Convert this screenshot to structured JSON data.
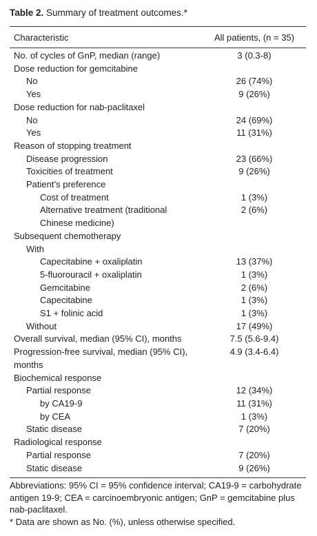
{
  "title": {
    "label": "Table 2.",
    "text": "Summary of treatment outcomes.*"
  },
  "table": {
    "header": [
      "Characteristic",
      "All patients, (n = 35)"
    ],
    "rows": [
      [
        "No. of cycles of GnP, median (range)",
        "3 (0.3-8)"
      ],
      [
        "Dose reduction for gemcitabine"
      ],
      [
        "No",
        "26 (74%)"
      ],
      [
        "Yes",
        "9 (26%)"
      ],
      [
        "Dose reduction for nab-paclitaxel"
      ],
      [
        "No",
        "24 (69%)"
      ],
      [
        "Yes",
        "11 (31%)"
      ],
      [
        "Reason of stopping treatment"
      ],
      [
        "Disease progression",
        "23 (66%)"
      ],
      [
        "Toxicities of treatment",
        "9 (26%)"
      ],
      [
        "Patient’s preference"
      ],
      [
        "Cost of treatment",
        "1 (3%)"
      ],
      [
        "Alternative treatment (traditional Chinese medicine)",
        "2 (6%)"
      ],
      [
        "Subsequent chemotherapy"
      ],
      [
        "With"
      ],
      [
        "Capecitabine + oxaliplatin",
        "13 (37%)"
      ],
      [
        "5-fluorouracil + oxaliplatin",
        "1 (3%)"
      ],
      [
        "Gemcitabine",
        "2 (6%)"
      ],
      [
        "Capecitabine",
        "1 (3%)"
      ],
      [
        "S1 + folinic acid",
        "1 (3%)"
      ],
      [
        "Without",
        "17 (49%)"
      ],
      [
        "Overall survival, median (95% CI), months",
        "7.5 (5.6-9.4)"
      ],
      [
        "Progression-free survival, median (95% CI), months",
        "4.9 (3.4-6.4)"
      ],
      [
        "Biochemical response"
      ],
      [
        "Partial response",
        "12 (34%)"
      ],
      [
        "by CA19-9",
        "11 (31%)"
      ],
      [
        "by CEA",
        "1 (3%)"
      ],
      [
        "Static disease",
        "7 (20%)"
      ],
      [
        "Radiological response"
      ],
      [
        "Partial response",
        "7 (20%)"
      ],
      [
        "Static disease",
        "9 (26%)"
      ]
    ]
  },
  "footnotes": [
    "Abbreviations: 95% CI = 95% confidence interval; CA19-9 = carbohydrate antigen 19-9; CEA = carcinoembryonic antigen; GnP = gemcitabine plus nab-paclitaxel.",
    "* Data are shown as No. (%), unless otherwise specified."
  ]
}
